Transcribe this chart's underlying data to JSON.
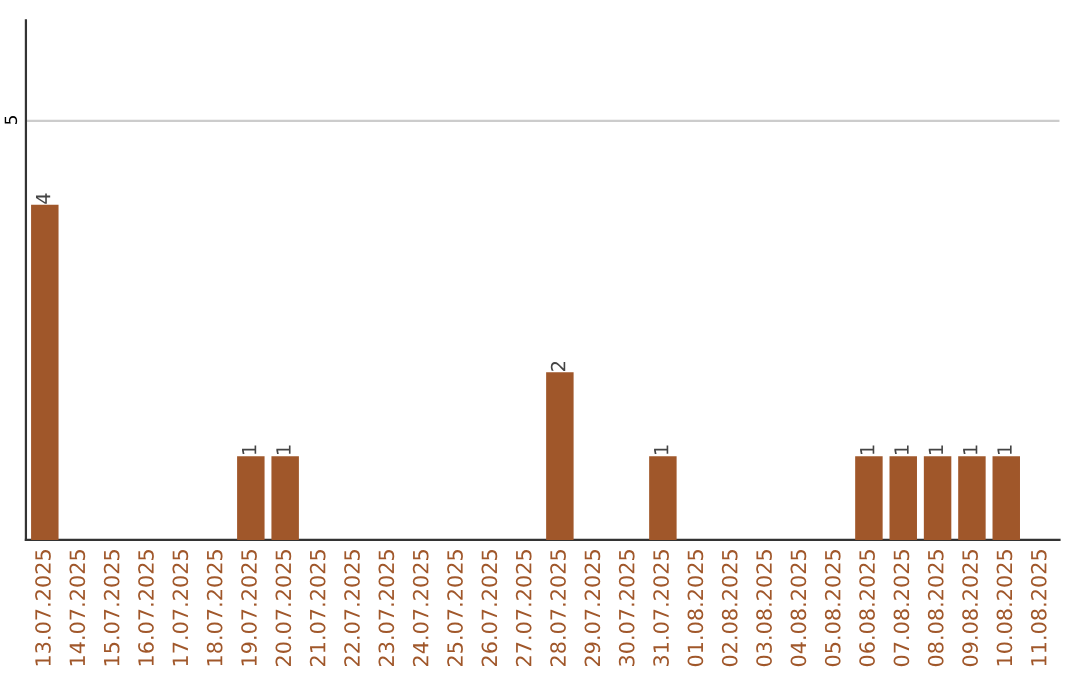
{
  "chart_data": {
    "type": "bar",
    "categories": [
      "13.07.2025",
      "14.07.2025",
      "15.07.2025",
      "16.07.2025",
      "17.07.2025",
      "18.07.2025",
      "19.07.2025",
      "20.07.2025",
      "21.07.2025",
      "22.07.2025",
      "23.07.2025",
      "24.07.2025",
      "25.07.2025",
      "26.07.2025",
      "27.07.2025",
      "28.07.2025",
      "29.07.2025",
      "30.07.2025",
      "31.07.2025",
      "01.08.2025",
      "02.08.2025",
      "03.08.2025",
      "04.08.2025",
      "05.08.2025",
      "06.08.2025",
      "07.08.2025",
      "08.08.2025",
      "09.08.2025",
      "10.08.2025",
      "11.08.2025"
    ],
    "values": [
      4,
      0,
      0,
      0,
      0,
      0,
      1,
      1,
      0,
      0,
      0,
      0,
      0,
      0,
      0,
      2,
      0,
      0,
      1,
      0,
      0,
      0,
      0,
      0,
      1,
      1,
      1,
      1,
      1,
      0
    ],
    "value_labels": [
      "4",
      null,
      null,
      null,
      null,
      null,
      "1",
      "1",
      null,
      null,
      null,
      null,
      null,
      null,
      null,
      "2",
      null,
      null,
      "1",
      null,
      null,
      null,
      null,
      null,
      "1",
      "1",
      "1",
      "1",
      "1",
      null
    ],
    "color": "#a0572a",
    "ylim": [
      0,
      6.2
    ],
    "yticks": [
      5
    ],
    "grid": "y",
    "legend": false
  }
}
